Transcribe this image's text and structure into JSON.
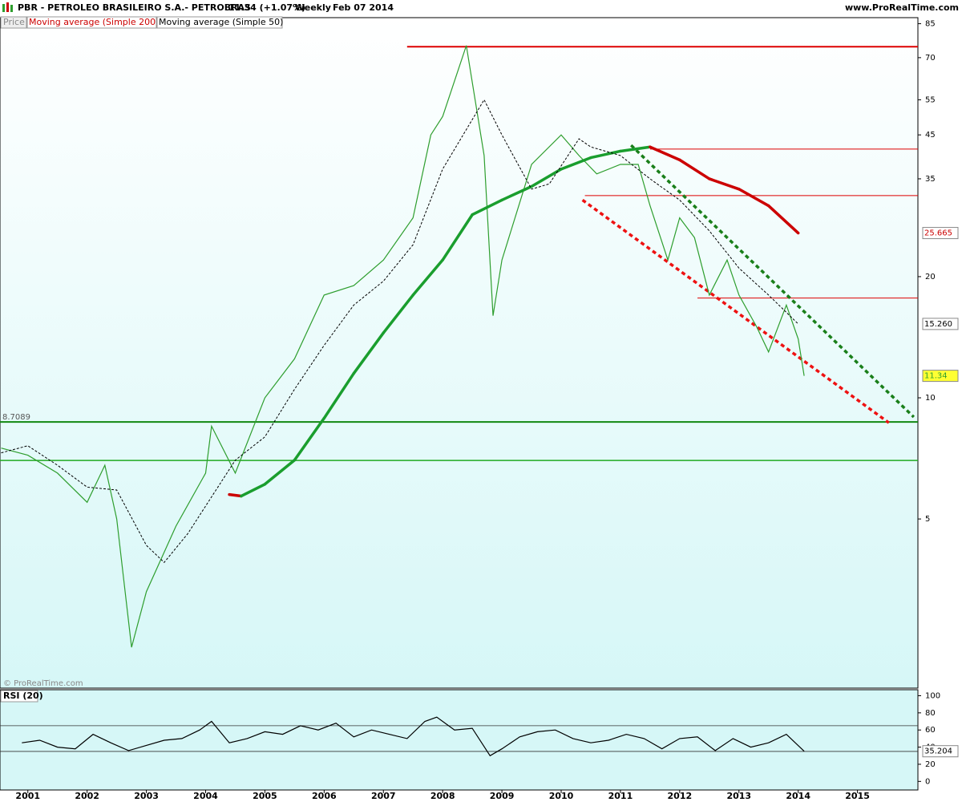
{
  "chart_data": [
    {
      "type": "line",
      "title": "PBR - PETROLEO BRASILEIRO S.A.- PETROBRAS",
      "quote": "11.34 (+1.07%)",
      "period": "Weekly",
      "date": "Feb 07 2014",
      "source": "www.ProRealTime.com",
      "watermark": "© ProRealTime.com",
      "log_scale": true,
      "xlim": [
        2000.53,
        2016.02
      ],
      "xticks": [
        2001,
        2002,
        2003,
        2004,
        2005,
        2006,
        2007,
        2008,
        2009,
        2010,
        2011,
        2012,
        2013,
        2014,
        2015
      ],
      "ylim": [
        1.9,
        88
      ],
      "yticks": [
        5,
        10,
        20,
        35,
        45,
        55,
        70,
        85
      ],
      "series": [
        {
          "name": "Price",
          "color": "#2e9e2e",
          "label_fill": "#ffff33",
          "x": [
            2000.55,
            2001.0,
            2001.5,
            2002.0,
            2002.3,
            2002.5,
            2002.75,
            2003.0,
            2003.5,
            2004.0,
            2004.1,
            2004.5,
            2005.0,
            2005.5,
            2006.0,
            2006.5,
            2007.0,
            2007.5,
            2007.8,
            2008.0,
            2008.4,
            2008.7,
            2008.85,
            2009.0,
            2009.5,
            2010.0,
            2010.3,
            2010.6,
            2011.0,
            2011.3,
            2011.5,
            2011.8,
            2012.0,
            2012.25,
            2012.5,
            2012.8,
            2013.0,
            2013.3,
            2013.5,
            2013.8,
            2014.0,
            2014.1
          ],
          "values": [
            7.5,
            7.2,
            6.5,
            5.5,
            6.8,
            5.0,
            2.4,
            3.3,
            4.8,
            6.5,
            8.5,
            6.5,
            10,
            12.5,
            18,
            19,
            22,
            28,
            45,
            50,
            75,
            40,
            16,
            22,
            38,
            45,
            40,
            36,
            38,
            38,
            30,
            22,
            28,
            25,
            18,
            22,
            18,
            15,
            13,
            17,
            14,
            11.34
          ]
        },
        {
          "name": "Moving average (Simple 200)",
          "up_color": "#1a9e2e",
          "down_color": "#cc0000",
          "width": 3.5,
          "label_fill": "#ffffff",
          "x": [
            2004.4,
            2004.6,
            2005.0,
            2005.5,
            2006.0,
            2006.5,
            2007.0,
            2007.5,
            2008.0,
            2008.5,
            2009.0,
            2009.5,
            2010.0,
            2010.5,
            2011.0,
            2011.5,
            2012.0,
            2012.5,
            2013.0,
            2013.5,
            2014.0
          ],
          "values": [
            5.75,
            5.7,
            6.1,
            7.0,
            8.9,
            11.5,
            14.5,
            18,
            22,
            28.5,
            31,
            33.5,
            37,
            39.5,
            41,
            42,
            39,
            35,
            33,
            30,
            25.665
          ]
        },
        {
          "name": "Moving average (Simple 50)",
          "color": "#000000",
          "dash": true,
          "width": 1,
          "label_fill": "#ffffff",
          "x": [
            2000.55,
            2001.0,
            2001.5,
            2002.0,
            2002.5,
            2003.0,
            2003.3,
            2003.7,
            2004.5,
            2005.0,
            2005.5,
            2006.0,
            2006.5,
            2007.0,
            2007.5,
            2008.0,
            2008.7,
            2009.0,
            2009.5,
            2009.8,
            2010.3,
            2010.5,
            2011.0,
            2011.5,
            2012.0,
            2012.5,
            2013.0,
            2013.5,
            2014.0
          ],
          "values": [
            7.3,
            7.6,
            6.8,
            6.0,
            5.9,
            4.3,
            3.9,
            4.6,
            7.0,
            8.0,
            10.5,
            13.5,
            17,
            19.5,
            24,
            37,
            55,
            45,
            33,
            34,
            44,
            42,
            40,
            35,
            31,
            26,
            21,
            18,
            15.26
          ],
          "value_labels": [
            null,
            null,
            null,
            null,
            null,
            null,
            null,
            null,
            null,
            null,
            null,
            null,
            null,
            null,
            null,
            null,
            null,
            null,
            null,
            null,
            null,
            null,
            null,
            null,
            null,
            null,
            null,
            null,
            "15.260"
          ]
        }
      ],
      "hlines": [
        {
          "value": 74.5,
          "from": 2007.4,
          "color": "#dd0000",
          "width": 2
        },
        {
          "value": 41.5,
          "from": 2011.5,
          "color": "#dd0000",
          "width": 1
        },
        {
          "value": 31.8,
          "from": 2010.4,
          "color": "#dd0000",
          "width": 1
        },
        {
          "value": 17.7,
          "from": 2012.3,
          "color": "#dd0000",
          "width": 1
        },
        {
          "value": 8.7089,
          "from": 2000.53,
          "color": "#118811",
          "width": 2,
          "show_label": true
        },
        {
          "value": 6.99,
          "from": 2000.53,
          "color": "#22aa22",
          "width": 1.5
        }
      ],
      "trendlines": [
        {
          "x": [
            2011.18,
            2015.95
          ],
          "values": [
            42.4,
            8.96
          ],
          "color": "#1a7f1a"
        },
        {
          "x": [
            2010.36,
            2015.53
          ],
          "values": [
            31.0,
            8.67
          ],
          "color": "#ee1111"
        }
      ]
    },
    {
      "type": "line",
      "name": "RSI (20)",
      "color": "#000000",
      "label_fill": "#ffffff",
      "xlim": [
        2000.53,
        2016.02
      ],
      "ylim": [
        -10,
        107
      ],
      "yticks": [
        0,
        20,
        40,
        60,
        80,
        100
      ],
      "levels": [
        35,
        65
      ],
      "x": [
        2000.9,
        2001.2,
        2001.5,
        2001.8,
        2002.1,
        2002.4,
        2002.7,
        2003.0,
        2003.3,
        2003.6,
        2003.9,
        2004.1,
        2004.4,
        2004.7,
        2005.0,
        2005.3,
        2005.6,
        2005.9,
        2006.2,
        2006.5,
        2006.8,
        2007.1,
        2007.4,
        2007.7,
        2007.9,
        2008.2,
        2008.5,
        2008.8,
        2009.0,
        2009.3,
        2009.6,
        2009.9,
        2010.2,
        2010.5,
        2010.8,
        2011.1,
        2011.4,
        2011.7,
        2012.0,
        2012.3,
        2012.6,
        2012.9,
        2013.2,
        2013.5,
        2013.8,
        2014.1
      ],
      "values": [
        45,
        48,
        40,
        38,
        55,
        45,
        36,
        42,
        48,
        50,
        60,
        70,
        45,
        50,
        58,
        55,
        65,
        60,
        68,
        52,
        60,
        55,
        50,
        70,
        75,
        60,
        62,
        30,
        38,
        52,
        58,
        60,
        50,
        45,
        48,
        55,
        50,
        38,
        50,
        52,
        36,
        50,
        40,
        45,
        55,
        35.204
      ]
    }
  ]
}
